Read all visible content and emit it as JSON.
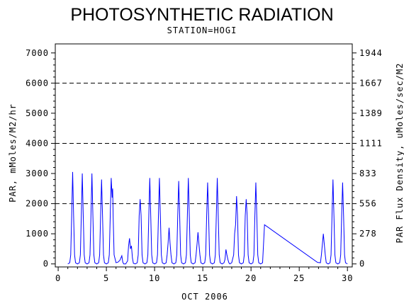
{
  "chart_data": {
    "type": "line",
    "title": "PHOTOSYNTHETIC RADIATION",
    "subtitle": "STATION=HOGI",
    "xlabel": "OCT 2006",
    "ylabel": "PAR, mMoles/M2/hr",
    "y2label": "PAR Flux Density, uMoles/sec/M2",
    "xlim": [
      -0.3,
      30.5
    ],
    "ylim": [
      -100,
      7300
    ],
    "x_ticks": [
      0,
      5,
      10,
      15,
      20,
      25,
      30
    ],
    "y_ticks": [
      0,
      1000,
      2000,
      3000,
      4000,
      5000,
      6000,
      7000
    ],
    "y2_ticks": [
      {
        "label": "0",
        "y": 0
      },
      {
        "label": "278",
        "y": 1000
      },
      {
        "label": "556",
        "y": 2000
      },
      {
        "label": "833",
        "y": 3000
      },
      {
        "label": "1111",
        "y": 4000
      },
      {
        "label": "1389",
        "y": 5000
      },
      {
        "label": "1667",
        "y": 6000
      },
      {
        "label": "1944",
        "y": 7000
      }
    ],
    "grid_lines_y": [
      2000,
      4000,
      6000
    ],
    "line_color": "#0000ff",
    "series": [
      {
        "x": [
          1.0,
          1.2,
          1.3,
          1.4,
          1.5,
          1.6,
          1.7,
          1.8,
          2.0,
          2.2,
          2.3,
          2.4,
          2.5,
          2.6,
          2.7,
          2.8,
          3.0,
          3.2,
          3.3,
          3.4,
          3.5,
          3.6,
          3.7,
          3.8,
          4.0,
          4.2,
          4.3,
          4.4,
          4.5,
          4.6,
          4.7,
          4.8,
          5.0,
          5.2,
          5.3,
          5.4,
          5.5,
          5.6,
          5.65,
          5.7,
          5.8,
          6.0,
          6.2,
          6.4,
          6.6,
          6.7,
          6.8,
          7.0,
          7.2,
          7.3,
          7.4,
          7.5,
          7.6,
          7.7,
          7.8,
          8.0,
          8.2,
          8.3,
          8.4,
          8.5,
          8.6,
          8.7,
          8.8,
          9.0,
          9.2,
          9.3,
          9.4,
          9.5,
          9.6,
          9.7,
          9.8,
          10.0,
          10.2,
          10.3,
          10.4,
          10.5,
          10.6,
          10.7,
          10.8,
          11.0,
          11.2,
          11.3,
          11.4,
          11.5,
          11.6,
          11.7,
          11.8,
          12.0,
          12.2,
          12.3,
          12.4,
          12.5,
          12.6,
          12.7,
          12.8,
          13.0,
          13.2,
          13.3,
          13.4,
          13.5,
          13.6,
          13.7,
          13.8,
          14.0,
          14.2,
          14.3,
          14.4,
          14.5,
          14.6,
          14.7,
          14.8,
          15.0,
          15.2,
          15.3,
          15.4,
          15.5,
          15.6,
          15.7,
          15.8,
          16.0,
          16.2,
          16.3,
          16.4,
          16.5,
          16.6,
          16.7,
          16.8,
          17.0,
          17.2,
          17.3,
          17.4,
          17.5,
          17.6,
          17.7,
          17.8,
          18.0,
          18.2,
          18.3,
          18.4,
          18.5,
          18.6,
          18.7,
          18.8,
          19.0,
          19.2,
          19.3,
          19.4,
          19.5,
          19.6,
          19.7,
          19.8,
          20.0,
          20.2,
          20.3,
          20.4,
          20.5,
          20.6,
          20.7,
          20.8,
          21.0,
          21.2,
          21.4,
          26.9,
          27.2,
          27.3,
          27.4,
          27.5,
          27.6,
          27.7,
          27.8,
          28.0,
          28.2,
          28.3,
          28.4,
          28.5,
          28.6,
          28.7,
          28.8,
          29.0,
          29.2,
          29.3,
          29.4,
          29.5,
          29.6,
          29.7,
          29.8,
          30.0
        ],
        "values": [
          0,
          40,
          300,
          1600,
          3050,
          1600,
          300,
          40,
          0,
          40,
          300,
          1600,
          3000,
          1600,
          300,
          40,
          0,
          40,
          300,
          1600,
          3000,
          1600,
          300,
          40,
          0,
          40,
          300,
          1600,
          2800,
          1600,
          300,
          40,
          0,
          40,
          300,
          1600,
          2850,
          2200,
          2500,
          1600,
          300,
          40,
          60,
          120,
          270,
          60,
          0,
          0,
          100,
          600,
          850,
          500,
          600,
          200,
          20,
          0,
          40,
          300,
          1600,
          2150,
          1600,
          300,
          40,
          0,
          40,
          300,
          1600,
          2850,
          1600,
          300,
          40,
          0,
          40,
          300,
          1600,
          2850,
          1600,
          300,
          40,
          0,
          40,
          300,
          700,
          1200,
          700,
          300,
          40,
          0,
          40,
          300,
          1600,
          2750,
          1600,
          300,
          40,
          0,
          40,
          300,
          1600,
          2850,
          1600,
          300,
          40,
          0,
          40,
          300,
          650,
          1050,
          650,
          300,
          40,
          0,
          40,
          300,
          1600,
          2700,
          1600,
          300,
          40,
          0,
          40,
          300,
          1600,
          2850,
          1600,
          300,
          40,
          0,
          40,
          150,
          480,
          300,
          150,
          40,
          0,
          40,
          300,
          1000,
          1300,
          2250,
          1600,
          300,
          40,
          0,
          40,
          300,
          1600,
          2150,
          1600,
          300,
          40,
          0,
          40,
          300,
          1600,
          2700,
          1600,
          300,
          40,
          0,
          40,
          1300,
          50,
          40,
          300,
          650,
          1000,
          650,
          300,
          40,
          0,
          40,
          300,
          1600,
          2800,
          1600,
          300,
          40,
          0,
          40,
          300,
          1600,
          2700,
          1600,
          300,
          40,
          0
        ]
      }
    ]
  }
}
